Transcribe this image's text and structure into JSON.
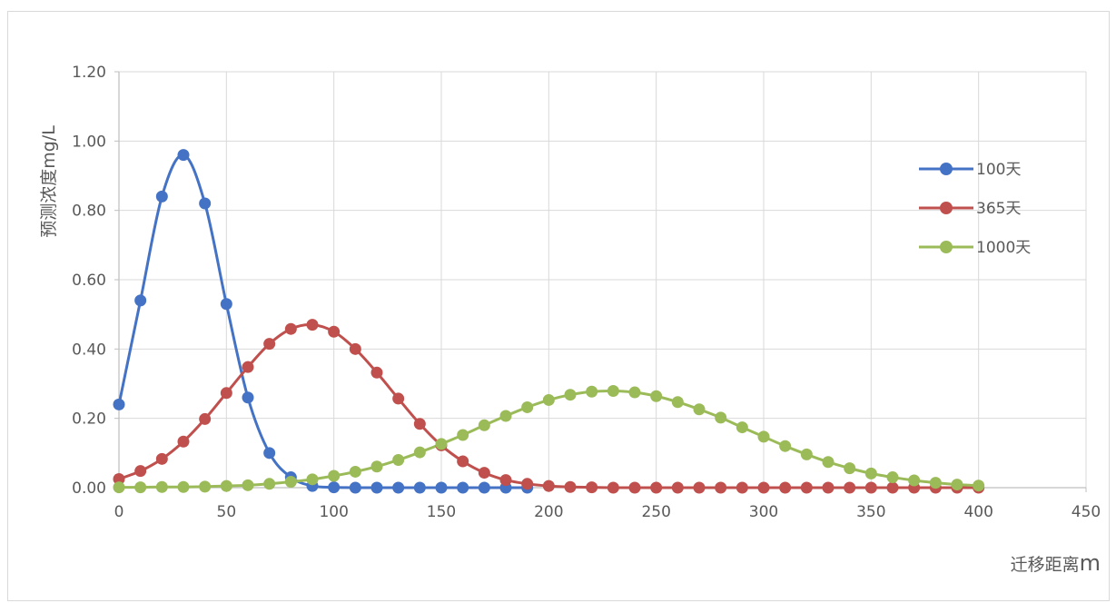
{
  "chart_data": {
    "type": "line",
    "ylabel": "预测浓度mg/L",
    "xlabel_main": "迁移距离",
    "xlabel_unit": "m",
    "xlim": [
      0,
      450
    ],
    "ylim": [
      0,
      1.2
    ],
    "x_ticks": [
      "0",
      "50",
      "100",
      "150",
      "200",
      "250",
      "300",
      "350",
      "400",
      "450"
    ],
    "y_ticks": [
      "0.00",
      "0.20",
      "0.40",
      "0.60",
      "0.80",
      "1.00",
      "1.20"
    ],
    "grid": true,
    "legend_position": "right",
    "series": [
      {
        "name": "100天",
        "color": "#4472c4",
        "x": [
          0,
          10,
          20,
          30,
          40,
          50,
          60,
          70,
          80,
          90,
          100,
          110,
          120,
          130,
          140,
          150,
          160,
          170,
          180,
          190
        ],
        "values": [
          0.24,
          0.54,
          0.84,
          0.96,
          0.82,
          0.53,
          0.26,
          0.1,
          0.03,
          0.005,
          0.001,
          0,
          0,
          0,
          0,
          0,
          0,
          0,
          0,
          0
        ]
      },
      {
        "name": "365天",
        "color": "#c0504d",
        "x": [
          0,
          10,
          20,
          30,
          40,
          50,
          60,
          70,
          80,
          90,
          100,
          110,
          120,
          130,
          140,
          150,
          160,
          170,
          180,
          190,
          200,
          210,
          220,
          230,
          240,
          250,
          260,
          270,
          280,
          290,
          300,
          310,
          320,
          330,
          340,
          350,
          360,
          370,
          380,
          390,
          400
        ],
        "values": [
          0.025,
          0.048,
          0.083,
          0.133,
          0.198,
          0.273,
          0.348,
          0.415,
          0.458,
          0.47,
          0.45,
          0.4,
          0.332,
          0.257,
          0.184,
          0.122,
          0.076,
          0.043,
          0.022,
          0.011,
          0.005,
          0.002,
          0.001,
          0,
          0,
          0,
          0,
          0,
          0,
          0,
          0,
          0,
          0,
          0,
          0,
          0,
          0,
          0,
          0,
          0,
          0
        ]
      },
      {
        "name": "1000天",
        "color": "#9bbb59",
        "x": [
          0,
          10,
          20,
          30,
          40,
          50,
          60,
          70,
          80,
          90,
          100,
          110,
          120,
          130,
          140,
          150,
          160,
          170,
          180,
          190,
          200,
          210,
          220,
          230,
          240,
          250,
          260,
          270,
          280,
          290,
          300,
          310,
          320,
          330,
          340,
          350,
          360,
          370,
          380,
          390,
          400
        ],
        "values": [
          0.001,
          0.001,
          0.002,
          0.002,
          0.003,
          0.005,
          0.007,
          0.011,
          0.017,
          0.024,
          0.034,
          0.046,
          0.061,
          0.08,
          0.102,
          0.126,
          0.152,
          0.18,
          0.207,
          0.232,
          0.253,
          0.268,
          0.277,
          0.279,
          0.275,
          0.264,
          0.247,
          0.226,
          0.202,
          0.174,
          0.147,
          0.12,
          0.096,
          0.074,
          0.056,
          0.041,
          0.03,
          0.021,
          0.014,
          0.009,
          0.006
        ]
      }
    ]
  }
}
